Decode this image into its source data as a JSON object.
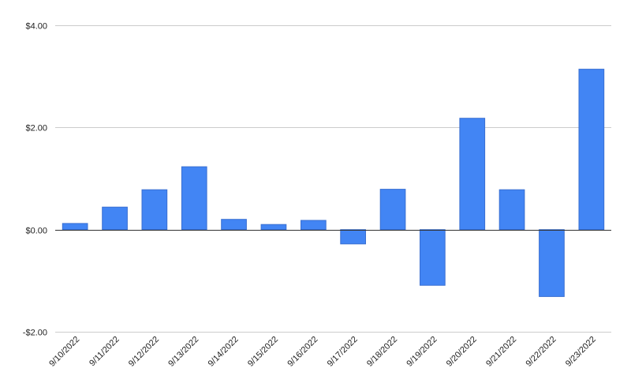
{
  "chart_data": {
    "type": "bar",
    "title": "",
    "xlabel": "",
    "ylabel": "",
    "categories": [
      "9/10/2022",
      "9/11/2022",
      "9/12/2022",
      "9/13/2022",
      "9/14/2022",
      "9/15/2022",
      "9/16/2022",
      "9/17/2022",
      "9/18/2022",
      "9/19/2022",
      "9/20/2022",
      "9/21/2022",
      "9/22/2022",
      "9/23/2022"
    ],
    "values": [
      0.12,
      0.44,
      0.78,
      1.23,
      0.2,
      0.1,
      0.18,
      -0.28,
      0.79,
      -1.09,
      2.18,
      0.78,
      -1.31,
      3.14
    ],
    "ylim": [
      -2,
      4
    ],
    "yticks": [
      4,
      2,
      0,
      -2
    ],
    "ytick_labels": [
      "$4.00",
      "$2.00",
      "$0.00",
      "-$2.00"
    ],
    "grid": true,
    "legend": "none",
    "bar_color": "#4285f4"
  }
}
